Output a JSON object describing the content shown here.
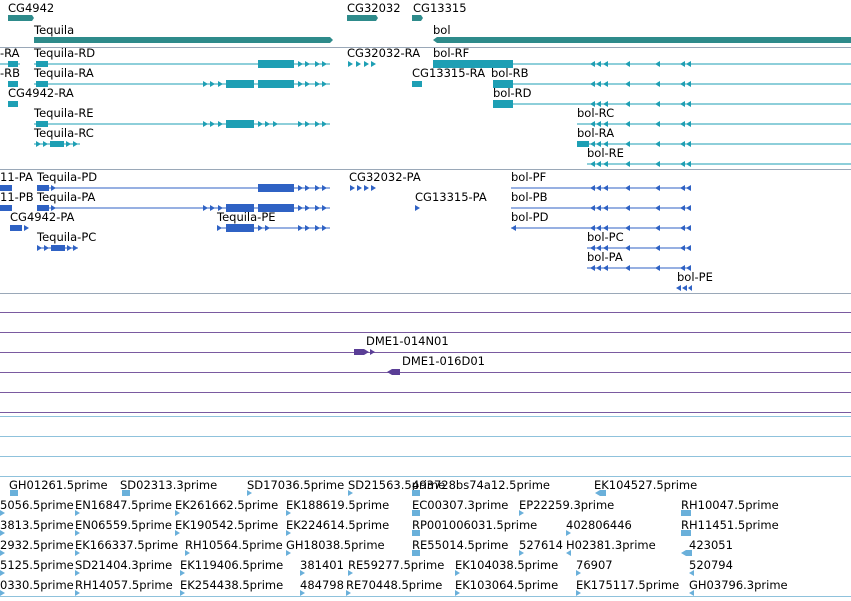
{
  "colors": {
    "gene": "#2e8b8b",
    "mrna": "#1e9fb4",
    "protein": "#2f62c4",
    "clone": "#5a3e96",
    "est": "#6ab0da",
    "divider": "#9aa8b8",
    "clone_line": "#7a5aa0",
    "est_line": "#8fc2dc"
  },
  "genes": {
    "labels": [
      "CG4942",
      "CG32032",
      "CG13315",
      "Tequila",
      "bol"
    ],
    "icon": "gene-bar-icon"
  },
  "mrnas": {
    "labels": [
      "-RA",
      "Tequila-RD",
      "CG32032-RA",
      "bol-RF",
      "-RB",
      "Tequila-RA",
      "CG13315-RA",
      "bol-RB",
      "CG4942-RA",
      "bol-RD",
      "Tequila-RE",
      "bol-RC",
      "Tequila-RC",
      "bol-RA",
      "bol-RE"
    ]
  },
  "proteins": {
    "labels": [
      "11-PA",
      "Tequila-PD",
      "CG32032-PA",
      "bol-PF",
      "11-PB",
      "Tequila-PA",
      "CG13315-PA",
      "bol-PB",
      "CG4942-PA",
      "Tequila-PE",
      "bol-PD",
      "Tequila-PC",
      "bol-PC",
      "bol-PA",
      "bol-PE"
    ]
  },
  "clones": {
    "labels": [
      "DME1-014N01",
      "DME1-016D01"
    ]
  },
  "ests": {
    "labels": [
      "GH01261.5prime",
      "SD02313.3prime",
      "SD17036.5prime",
      "SD21563.5prime",
      "493728bs74a12.5prime",
      "EK104527.5prime",
      "5056.5prime",
      "EN16847.5prime",
      "EK261662.5prime",
      "EK188619.5prime",
      "EC00307.3prime",
      "EP22259.3prime",
      "RH10047.5prime",
      "3813.5prime",
      "EN06559.5prime",
      "EK190542.5prime",
      "EK224614.5prime",
      "RP001006031.5prime",
      "402806446",
      "RH11451.5prime",
      "2932.5prime",
      "EK166337.5prime",
      "RH10564.5prime",
      "GH18038.5prime",
      "RE55014.5prime",
      "527614",
      "H02381.3prime",
      "423051",
      "5125.5prime",
      "SD21404.3prime",
      "EK119406.5prime",
      "381401",
      "RE59277.5prime",
      "EK104038.5prime",
      "76907",
      "520794",
      "0330.5prime",
      "RH14057.5prime",
      "EK254438.5prime",
      "484798",
      "RE70448.5prime",
      "EK103064.5prime",
      "EK175117.5prime",
      "GH03796.3prime"
    ]
  }
}
